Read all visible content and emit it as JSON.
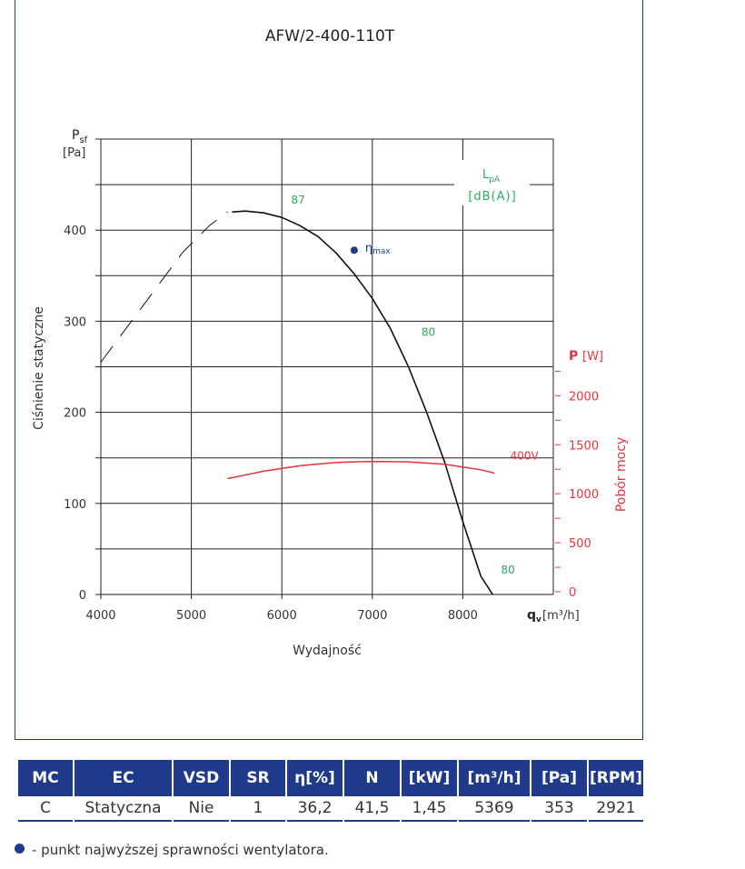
{
  "chart_data": {
    "type": "line",
    "title": "AFW/2-400-110T",
    "xlabel": "Wydajność",
    "x_unit_symbol": "q",
    "x_unit_sub": "v",
    "x_unit": "[m³/h]",
    "xlim": [
      4000,
      9000
    ],
    "xticks": [
      4000,
      5000,
      6000,
      7000,
      8000
    ],
    "ylabel": "Ciśnienie statyczne",
    "y_symbol": "P",
    "y_symbol_sub": "sf",
    "y_unit": "[Pa]",
    "ylim": [
      0,
      500
    ],
    "yticks": [
      0,
      100,
      200,
      300,
      400
    ],
    "y2label": "Pobór mocy",
    "y2_symbol": "P",
    "y2_unit": "[W]",
    "y2ticks": [
      0,
      500,
      1000,
      1500,
      2000
    ],
    "y2ticks_labels": [
      "0",
      "500",
      "1000",
      "1500",
      "2000"
    ],
    "y2_scale_max_W": 2300,
    "grid": true,
    "sound_label": "L",
    "sound_sub": "pA",
    "sound_unit": "[dB(A)]",
    "eta_label": "η",
    "eta_sub": "max",
    "eta_max_point": {
      "x": 6800,
      "y": 378
    },
    "series": [
      {
        "role": "pressure",
        "color": "#111111",
        "x": [
          5450,
          5600,
          5800,
          6000,
          6200,
          6400,
          6600,
          6800,
          7000,
          7200,
          7400,
          7600,
          7800,
          8000,
          8200,
          8330
        ],
        "y": [
          420,
          421,
          419,
          414,
          405,
          393,
          375,
          352,
          325,
          292,
          250,
          200,
          145,
          80,
          20,
          0
        ]
      },
      {
        "role": "stall-region",
        "color": "#111111",
        "x": [
          4000,
          4300,
          4600,
          4900,
          5200,
          5400
        ],
        "y": [
          255,
          295,
          335,
          375,
          405,
          420
        ]
      },
      {
        "name": "400V",
        "role": "power",
        "color": "#e8323c",
        "x": [
          5400,
          5800,
          6200,
          6600,
          7000,
          7400,
          7800,
          8200,
          8350
        ],
        "y": [
          1155,
          1230,
          1285,
          1320,
          1330,
          1325,
          1300,
          1245,
          1210
        ]
      }
    ],
    "annotations": [
      {
        "text": "87",
        "x": 6180,
        "y": 433,
        "color": "#2bab5e"
      },
      {
        "text": "80",
        "x": 7620,
        "y": 288,
        "color": "#2bab5e"
      },
      {
        "text": "80",
        "x": 8500,
        "y": 27,
        "color": "#2bab5e"
      },
      {
        "text": "400V",
        "x": 8680,
        "y": 152,
        "color": "#e8323c"
      }
    ]
  },
  "table": {
    "headers": [
      "MC",
      "EC",
      "VSD",
      "SR",
      "η[%]",
      "N",
      "[kW]",
      "[m³/h]",
      "[Pa]",
      "[RPM]"
    ],
    "rows": [
      [
        "C",
        "Statyczna",
        "Nie",
        "1",
        "36,2",
        "41,5",
        "1,45",
        "5369",
        "353",
        "2921"
      ]
    ]
  },
  "footnote": "- punkt najwyższej sprawności wentylatora.",
  "colors": {
    "brand": "#1f3a8a",
    "power": "#e8323c",
    "sound": "#2bab5e"
  }
}
